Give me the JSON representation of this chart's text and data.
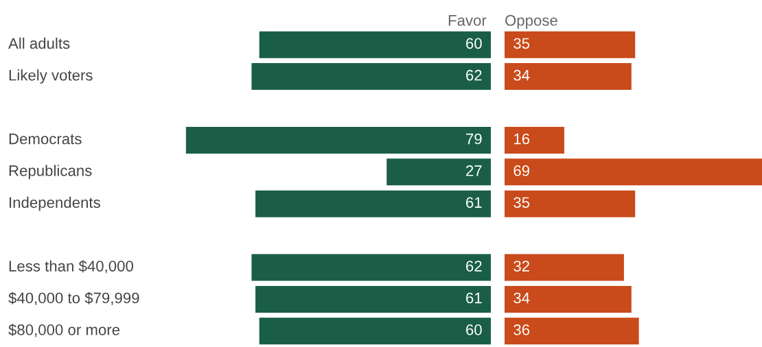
{
  "chart_data": [
    {
      "type": "bar",
      "orientation": "horizontal",
      "data_labels": true,
      "categories": [
        "All adults",
        "Likely voters",
        null,
        "Democrats",
        "Republicans",
        "Independents",
        null,
        "Less than $40,000",
        "$40,000 to $79,999",
        "$80,000 or more"
      ],
      "series": [
        {
          "name": "Favor",
          "color": "#1a5e48",
          "values": [
            60,
            62,
            null,
            79,
            27,
            61,
            null,
            62,
            61,
            60
          ]
        }
      ]
    },
    {
      "type": "bar",
      "orientation": "horizontal",
      "data_labels": true,
      "categories": [
        null,
        null,
        null,
        null,
        null,
        null,
        null,
        null,
        null,
        null
      ],
      "series": [
        {
          "name": "Oppose",
          "color": "#c94a1a",
          "values": [
            35,
            34,
            null,
            16,
            69,
            35,
            null,
            32,
            34,
            36
          ]
        }
      ]
    }
  ]
}
